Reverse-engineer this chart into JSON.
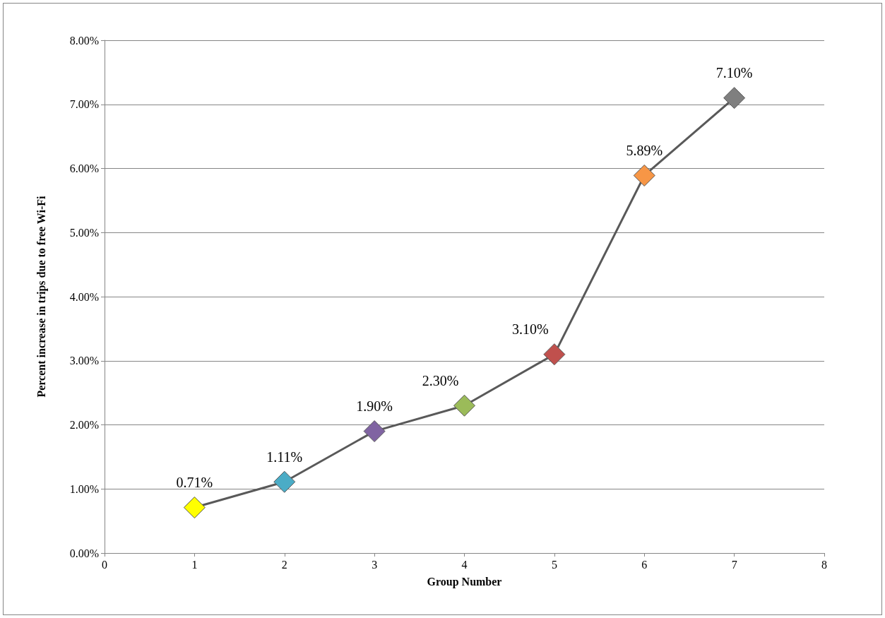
{
  "chart_data": {
    "type": "line",
    "xlabel": "Group Number",
    "ylabel": "Percent increase in trips due to free Wi-Fi",
    "x": [
      1,
      2,
      3,
      4,
      5,
      6,
      7
    ],
    "series": [
      {
        "color": "#595959",
        "colors": [
          "#ffff00",
          "#4bacc6",
          "#8064a2",
          "#9bbb59",
          "#c0504d",
          "#f79646",
          "#7f7f7f"
        ],
        "values": [
          0.71,
          1.11,
          1.9,
          2.3,
          3.1,
          5.89,
          7.1
        ],
        "value_labels": [
          "0.71%",
          "1.11%",
          "1.90%",
          "2.30%",
          "3.10%",
          "5.89%",
          "7.10%"
        ]
      }
    ],
    "xlim": [
      0,
      8
    ],
    "xticks": [
      0,
      1,
      2,
      3,
      4,
      5,
      6,
      7,
      8
    ],
    "ylim": [
      0,
      8
    ],
    "yticks": [
      {
        "value": 0,
        "label": "0.00%"
      },
      {
        "value": 1,
        "label": "1.00%"
      },
      {
        "value": 2,
        "label": "2.00%"
      },
      {
        "value": 3,
        "label": "3.00%"
      },
      {
        "value": 4,
        "label": "4.00%"
      },
      {
        "value": 5,
        "label": "5.00%"
      },
      {
        "value": 6,
        "label": "6.00%"
      },
      {
        "value": 7,
        "label": "7.00%"
      },
      {
        "value": 8,
        "label": "8.00%"
      }
    ],
    "grid": "y",
    "marker": "diamond",
    "line_style": "solid"
  }
}
